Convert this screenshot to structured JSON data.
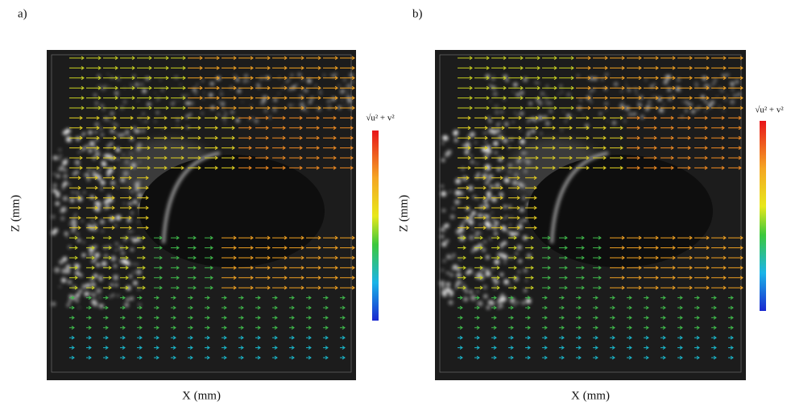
{
  "panels": [
    {
      "label": "a)",
      "x_axis": "X (mm)",
      "y_axis": "Z (mm)",
      "colorbar": "√u² + v²"
    },
    {
      "label": "b)",
      "x_axis": "X (mm)",
      "y_axis": "Z (mm)",
      "colorbar": "√u² + v²"
    }
  ]
}
